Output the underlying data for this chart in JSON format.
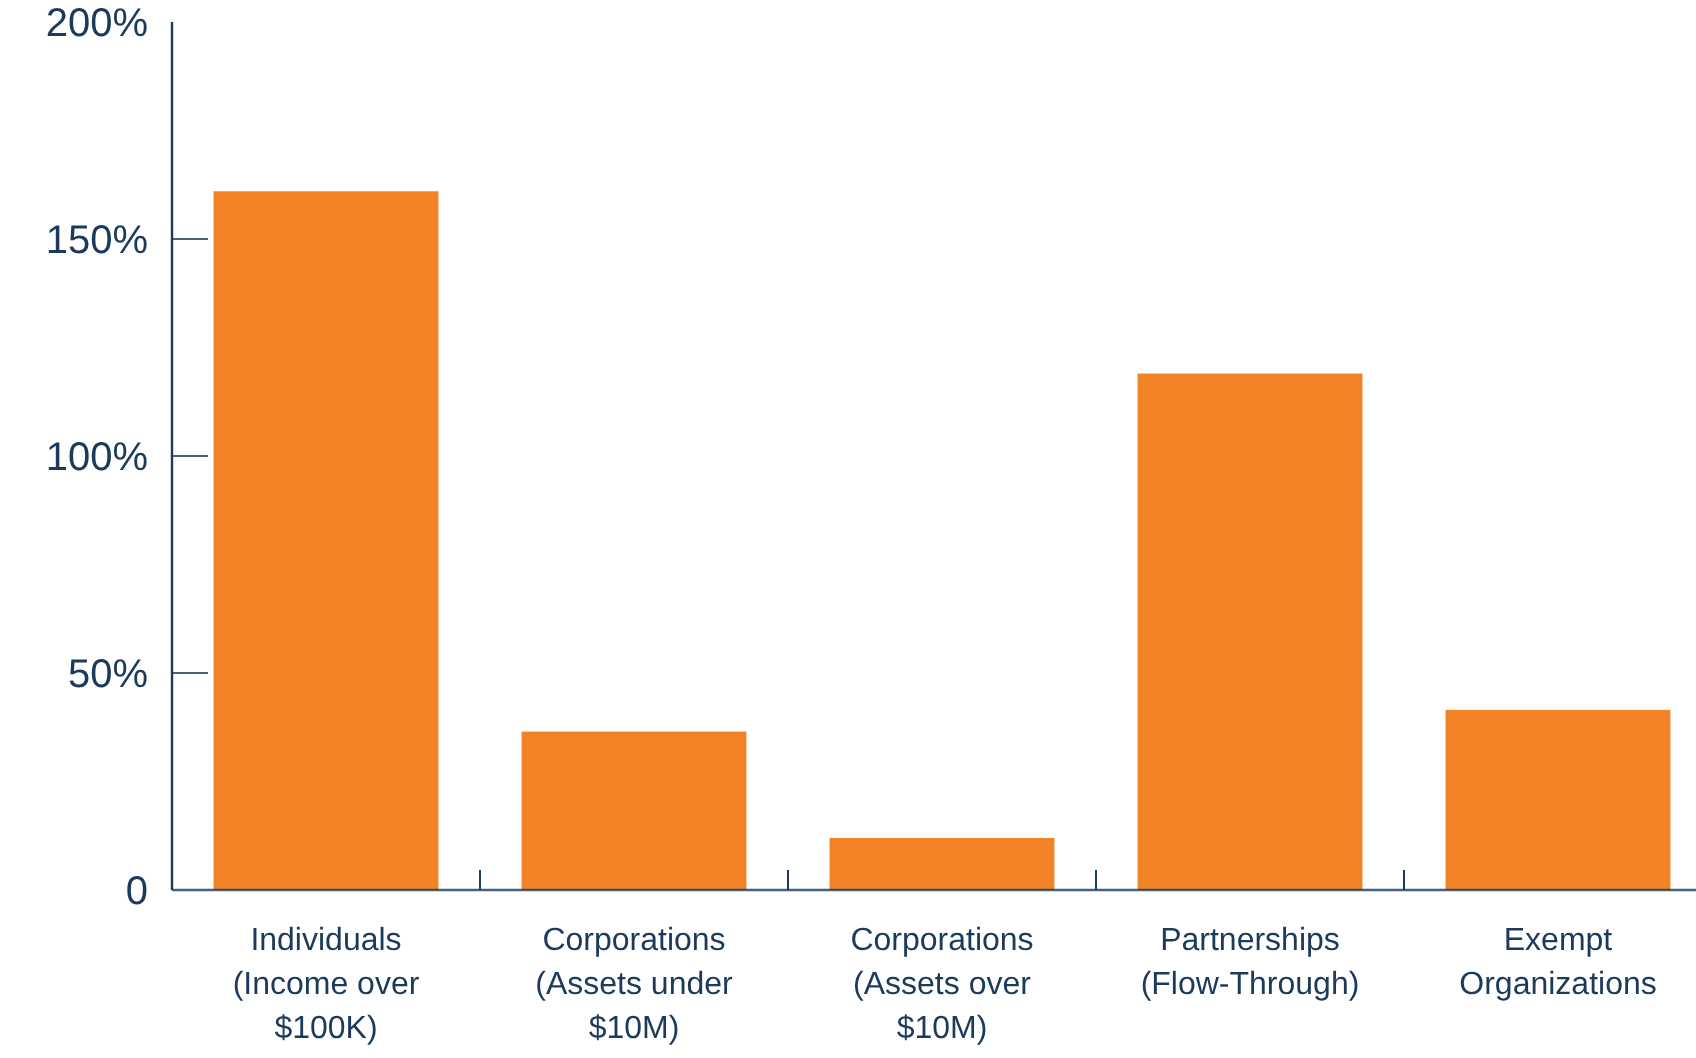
{
  "chart_data": {
    "type": "bar",
    "categories": [
      "Individuals (Income over $100K)",
      "Corporations (Assets under $10M)",
      "Corporations (Assets over $10M)",
      "Partnerships (Flow-Through)",
      "Exempt Organizations"
    ],
    "values": [
      161,
      36.5,
      12,
      119,
      41.5
    ],
    "color": "#f28226",
    "ylim": [
      0,
      200
    ],
    "yticks": [
      {
        "value": 0,
        "label": "0"
      },
      {
        "value": 50,
        "label": "50%"
      },
      {
        "value": 100,
        "label": "100%"
      },
      {
        "value": 150,
        "label": "150%"
      },
      {
        "value": 200,
        "label": "200%"
      }
    ],
    "grid": false
  }
}
